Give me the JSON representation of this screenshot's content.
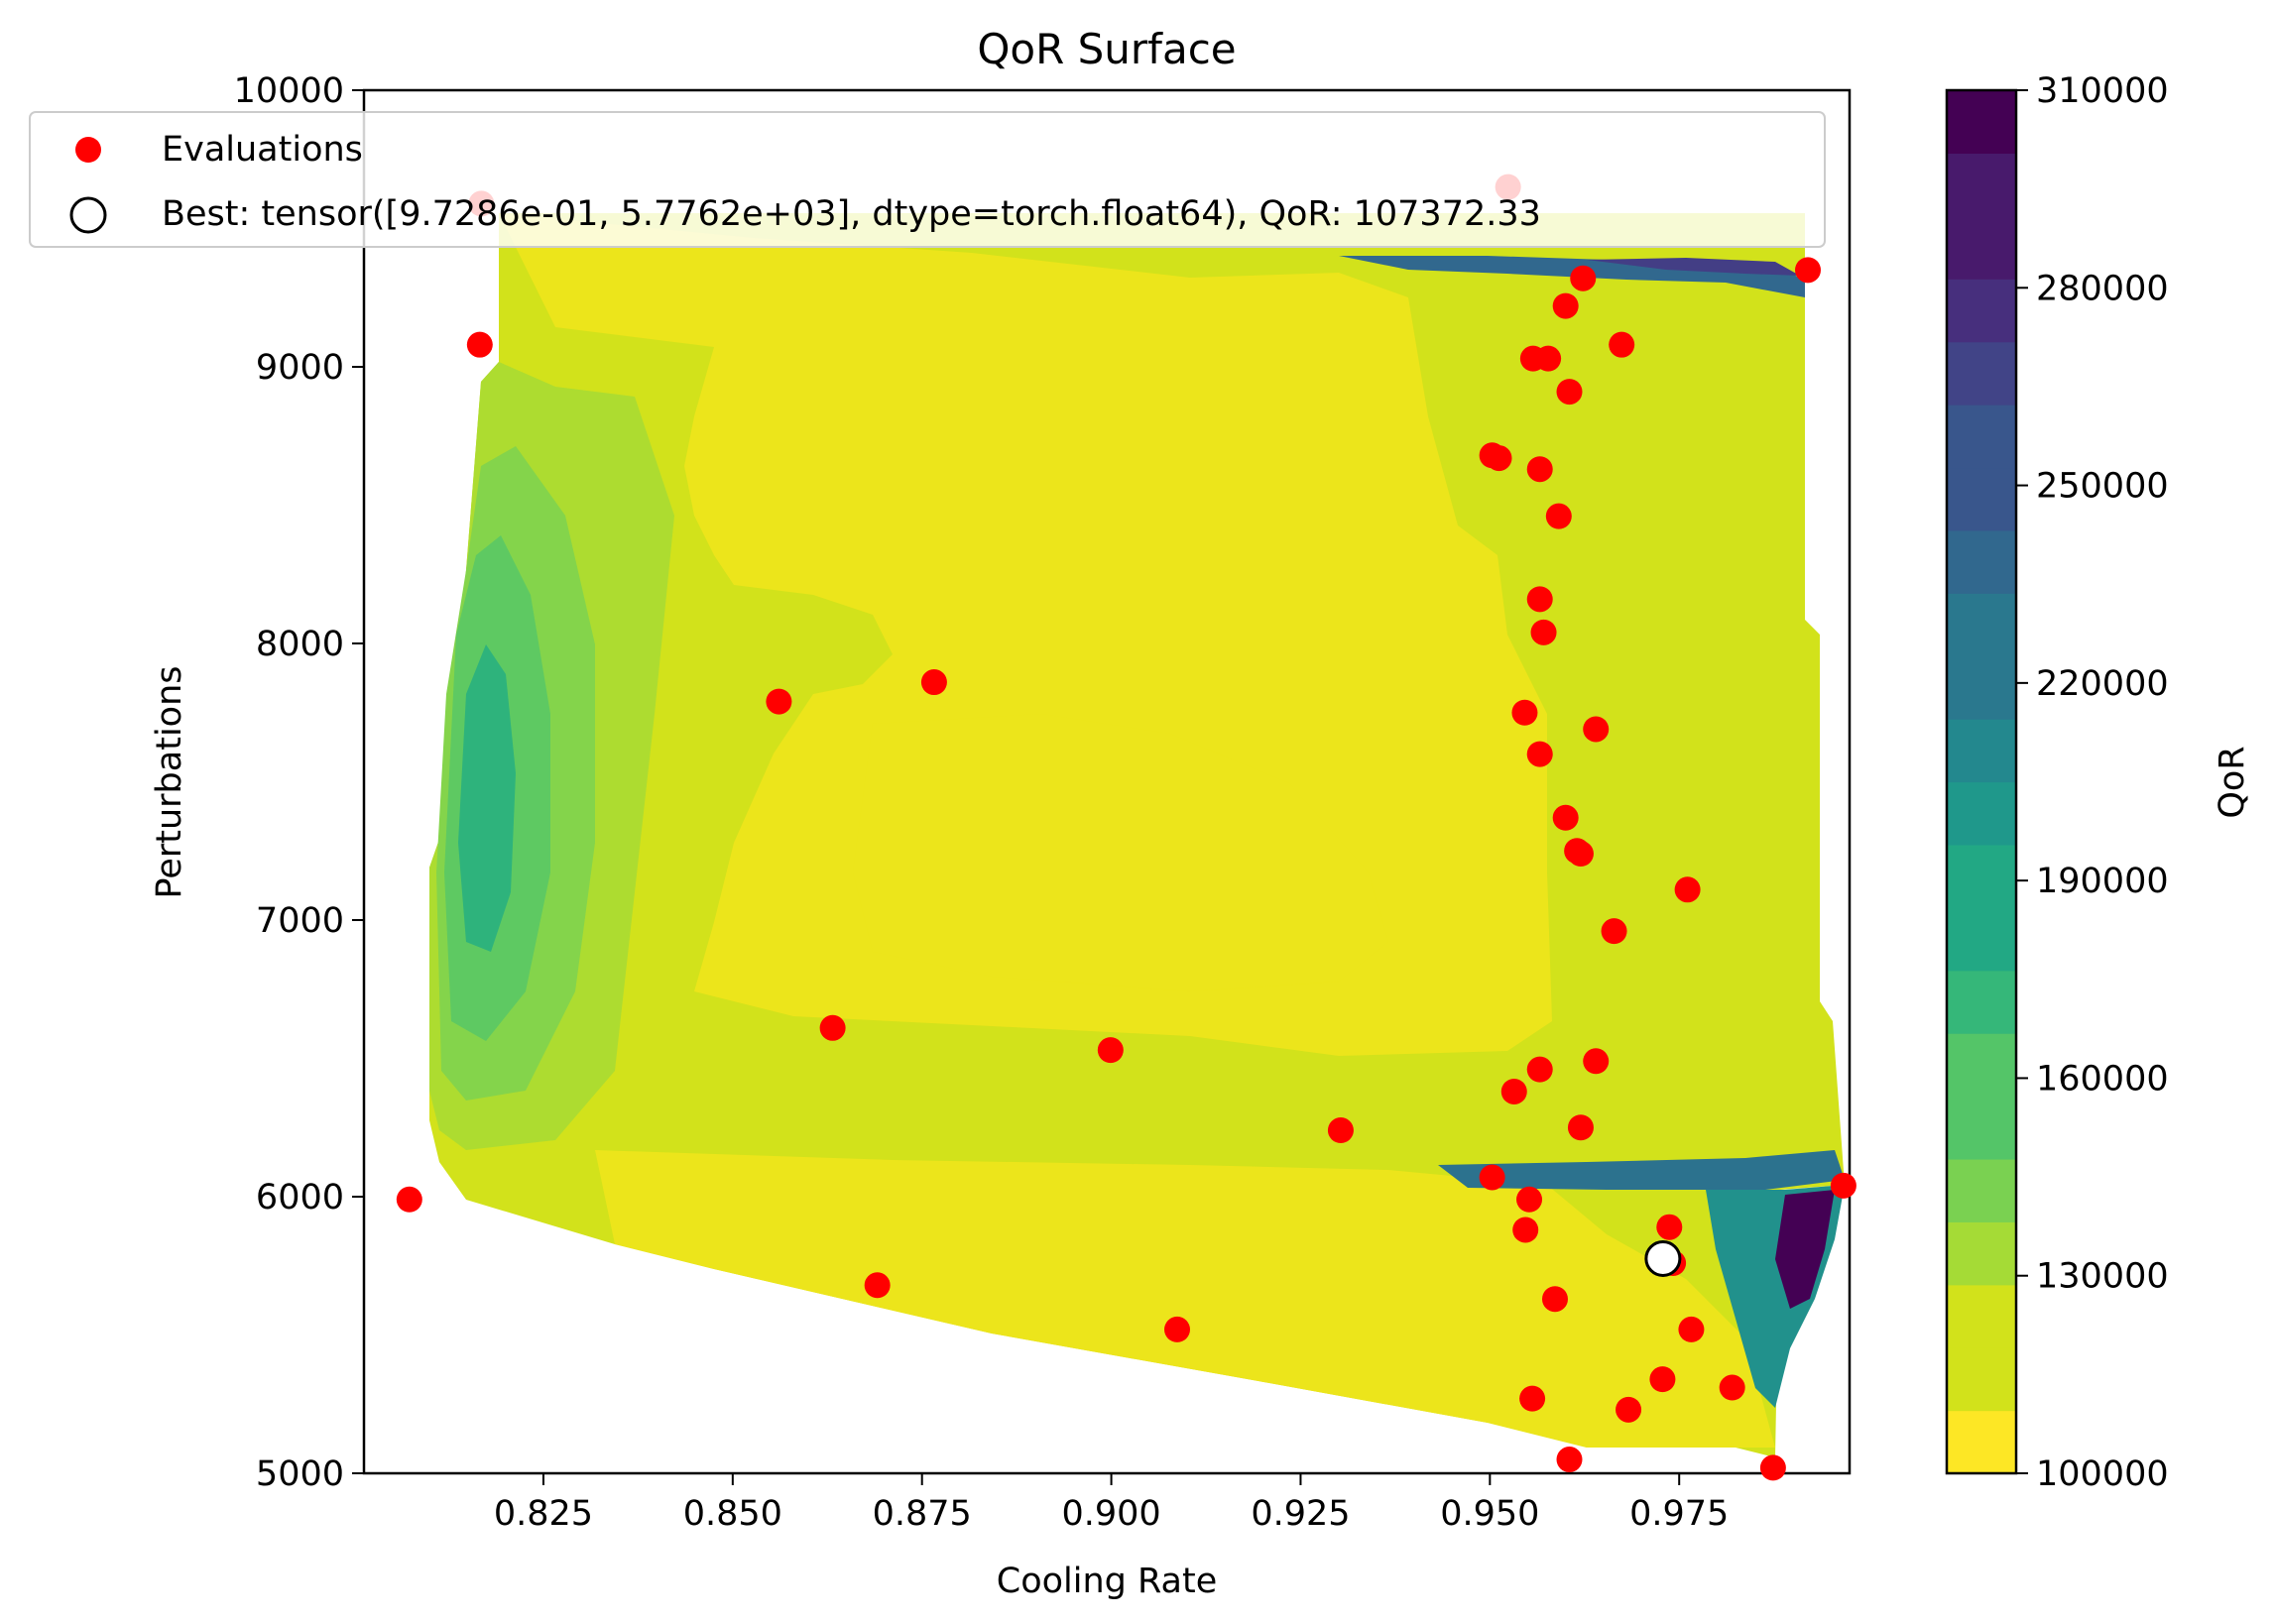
{
  "chart_data": {
    "type": "contour",
    "title": "QoR Surface",
    "xlabel": "Cooling Rate",
    "ylabel": "Perturbations",
    "xlim": [
      0.8013,
      0.9975
    ],
    "ylim": [
      5000,
      10000
    ],
    "x_ticks": [
      0.825,
      0.85,
      0.875,
      0.9,
      0.925,
      0.95,
      0.975
    ],
    "x_tick_labels": [
      "0.825",
      "0.850",
      "0.875",
      "0.900",
      "0.925",
      "0.950",
      "0.975"
    ],
    "y_ticks": [
      5000,
      6000,
      7000,
      8000,
      9000,
      10000
    ],
    "y_tick_labels": [
      "5000",
      "6000",
      "7000",
      "8000",
      "9000",
      "10000"
    ],
    "grid": false,
    "legend_placement": "top-left",
    "legend": [
      {
        "label": "Evaluations",
        "marker": "red-filled-circle"
      },
      {
        "label": "Best: tensor([9.7286e-01, 5.7762e+03], dtype=torch.float64), QoR: 107372.33",
        "marker": "white-hollow-circle"
      }
    ],
    "colorbar": {
      "label": "QoR",
      "colormap": "viridis_r",
      "range": [
        100000,
        310000
      ],
      "ticks": [
        100000,
        130000,
        160000,
        190000,
        220000,
        250000,
        280000,
        310000
      ],
      "tick_labels": [
        "100000",
        "130000",
        "160000",
        "190000",
        "220000",
        "250000",
        "280000",
        "310000"
      ]
    },
    "series": [
      {
        "name": "Evaluations",
        "color": "#ff0000",
        "points": [
          [
            0.8073,
            5990
          ],
          [
            0.8168,
            9590
          ],
          [
            0.8166,
            9080
          ],
          [
            0.8561,
            7790
          ],
          [
            0.8766,
            7860
          ],
          [
            0.8632,
            6610
          ],
          [
            0.8691,
            5680
          ],
          [
            0.8999,
            6530
          ],
          [
            0.9087,
            5520
          ],
          [
            0.9303,
            6240
          ],
          [
            0.9524,
            9650
          ],
          [
            0.992,
            9350
          ],
          [
            0.9623,
            9320
          ],
          [
            0.96,
            9220
          ],
          [
            0.9674,
            9080
          ],
          [
            0.9557,
            9030
          ],
          [
            0.9577,
            9030
          ],
          [
            0.9605,
            8910
          ],
          [
            0.9503,
            8680
          ],
          [
            0.9512,
            8670
          ],
          [
            0.9566,
            8630
          ],
          [
            0.9591,
            8460
          ],
          [
            0.9566,
            8160
          ],
          [
            0.9571,
            8040
          ],
          [
            0.9546,
            7750
          ],
          [
            0.964,
            7690
          ],
          [
            0.9566,
            7600
          ],
          [
            0.96,
            7370
          ],
          [
            0.9615,
            7250
          ],
          [
            0.962,
            7240
          ],
          [
            0.9761,
            7110
          ],
          [
            0.9664,
            6960
          ],
          [
            0.964,
            6490
          ],
          [
            0.9566,
            6460
          ],
          [
            0.9532,
            6380
          ],
          [
            0.962,
            6250
          ],
          [
            0.9503,
            6070
          ],
          [
            0.9552,
            5990
          ],
          [
            0.9967,
            6040
          ],
          [
            0.9547,
            5880
          ],
          [
            0.9737,
            5890
          ],
          [
            0.9742,
            5760
          ],
          [
            0.9586,
            5630
          ],
          [
            0.9766,
            5520
          ],
          [
            0.9728,
            5340
          ],
          [
            0.982,
            5310
          ],
          [
            0.9556,
            5270
          ],
          [
            0.9683,
            5230
          ],
          [
            0.9605,
            5050
          ],
          [
            0.9874,
            5020
          ]
        ]
      },
      {
        "name": "Best",
        "color": "#ffffff",
        "points": [
          [
            0.97286,
            5776.2
          ]
        ]
      }
    ]
  }
}
